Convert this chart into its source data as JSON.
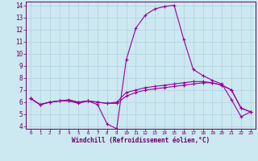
{
  "background_color": "#cce8f0",
  "grid_color": "#aaccdd",
  "line_color": "#990099",
  "xlabel": "Windchill (Refroidissement éolien,°C)",
  "xlim": [
    -0.5,
    23.5
  ],
  "ylim": [
    3.8,
    14.3
  ],
  "yticks": [
    4,
    5,
    6,
    7,
    8,
    9,
    10,
    11,
    12,
    13,
    14
  ],
  "xticks": [
    0,
    1,
    2,
    3,
    4,
    5,
    6,
    7,
    8,
    9,
    10,
    11,
    12,
    13,
    14,
    15,
    16,
    17,
    18,
    19,
    20,
    21,
    22,
    23
  ],
  "curve1_x": [
    0,
    1,
    2,
    3,
    4,
    5,
    6,
    7,
    8,
    9,
    10,
    11,
    12,
    13,
    14,
    15,
    16,
    17,
    18,
    19,
    20,
    21,
    22,
    23
  ],
  "curve1_y": [
    6.3,
    5.8,
    6.0,
    6.1,
    6.1,
    5.9,
    6.1,
    5.8,
    4.2,
    3.8,
    9.5,
    12.1,
    13.2,
    13.7,
    13.9,
    14.0,
    11.2,
    8.7,
    8.2,
    7.8,
    7.5,
    6.2,
    4.8,
    5.2
  ],
  "curve2_x": [
    0,
    1,
    2,
    3,
    4,
    5,
    6,
    7,
    8,
    9,
    10,
    11,
    12,
    13,
    14,
    15,
    16,
    17,
    18,
    19,
    20,
    21,
    22,
    23
  ],
  "curve2_y": [
    6.3,
    5.8,
    6.0,
    6.1,
    6.1,
    6.0,
    6.1,
    6.0,
    5.9,
    5.9,
    6.5,
    6.8,
    7.0,
    7.1,
    7.2,
    7.3,
    7.4,
    7.5,
    7.6,
    7.6,
    7.4,
    7.0,
    5.5,
    5.2
  ],
  "curve3_x": [
    0,
    1,
    2,
    3,
    4,
    5,
    6,
    7,
    8,
    9,
    10,
    11,
    12,
    13,
    14,
    15,
    16,
    17,
    18,
    19,
    20,
    21,
    22,
    23
  ],
  "curve3_y": [
    6.3,
    5.8,
    6.0,
    6.1,
    6.2,
    6.0,
    6.1,
    6.0,
    5.9,
    6.0,
    6.8,
    7.0,
    7.2,
    7.3,
    7.4,
    7.5,
    7.6,
    7.7,
    7.7,
    7.6,
    7.4,
    7.0,
    5.5,
    5.2
  ],
  "tick_color": "#660066",
  "xlabel_fontsize": 5.5,
  "ytick_fontsize": 5.5,
  "xtick_fontsize": 4.2,
  "linewidth": 0.8,
  "markersize": 3.0
}
